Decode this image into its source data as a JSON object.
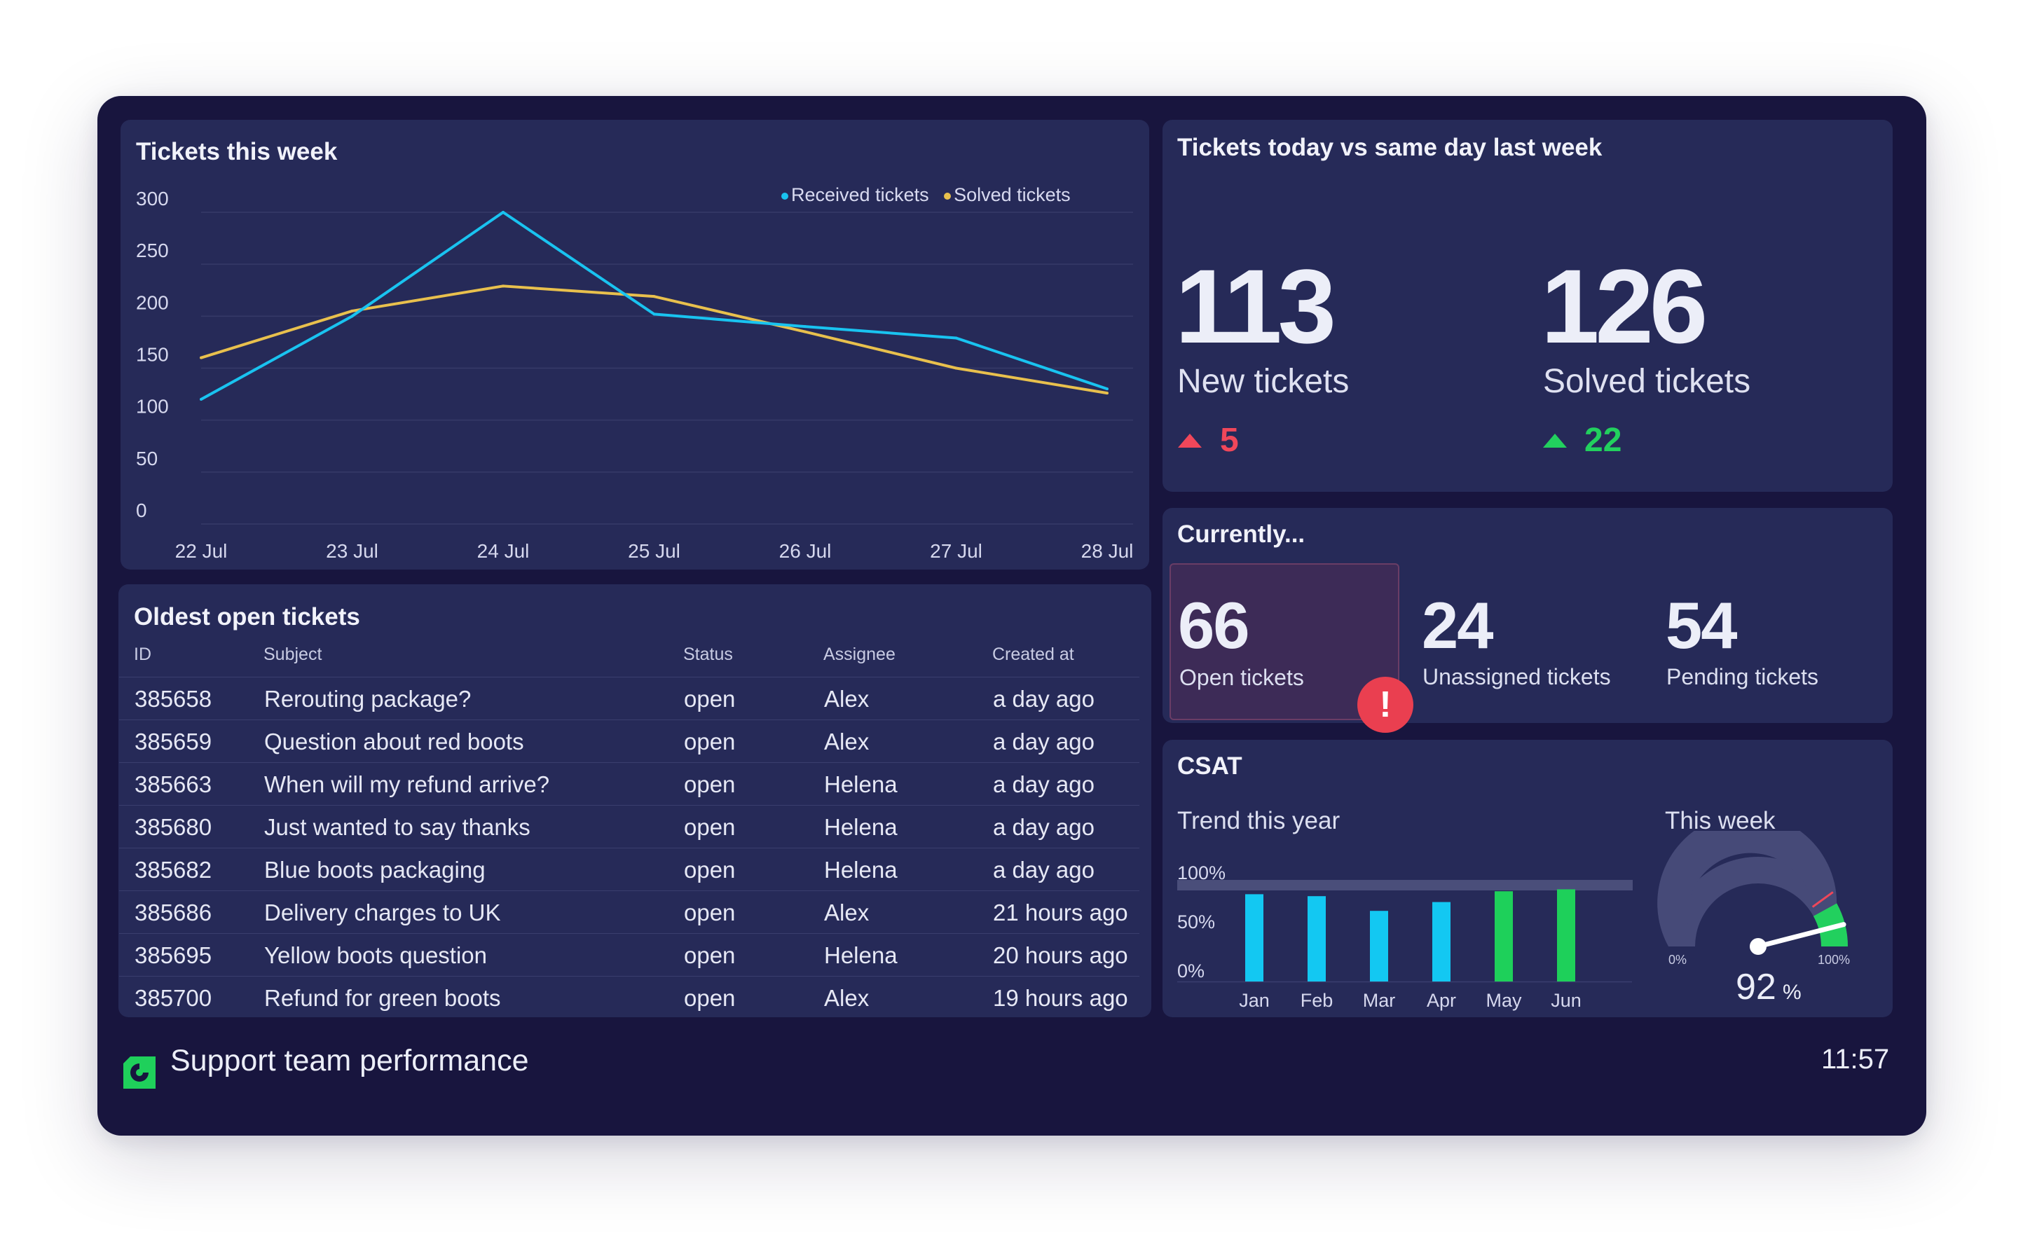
{
  "week_chart": {
    "title": "Tickets this week",
    "legend": [
      "Received tickets",
      "Solved tickets"
    ],
    "colors": {
      "received": "#19c3f0",
      "solved": "#e8c04d"
    }
  },
  "chart_data": [
    {
      "type": "line",
      "title": "Tickets this week",
      "categories": [
        "22 Jul",
        "23 Jul",
        "24 Jul",
        "25 Jul",
        "26 Jul",
        "27 Jul",
        "28 Jul"
      ],
      "y_ticks": [
        "300",
        "250",
        "200",
        "150",
        "100",
        "50",
        "0"
      ],
      "ylim": [
        0,
        300
      ],
      "series": [
        {
          "name": "Received tickets",
          "values": [
            120,
            200,
            300,
            202,
            190,
            179,
            130
          ]
        },
        {
          "name": "Solved tickets",
          "values": [
            160,
            205,
            229,
            219,
            185,
            150,
            126
          ]
        }
      ],
      "grid": true,
      "legend_position": "top-right"
    },
    {
      "type": "bar",
      "title": "Trend this year",
      "categories": [
        "Jan",
        "Feb",
        "Mar",
        "Apr",
        "May",
        "Jun"
      ],
      "y_ticks": [
        "100%",
        "50%",
        "0%"
      ],
      "ylim": [
        0,
        100
      ],
      "values": [
        89,
        87,
        72,
        81,
        92,
        94
      ],
      "colors": [
        "#13c8f2",
        "#13c8f2",
        "#13c8f2",
        "#13c8f2",
        "#1ed05a",
        "#1ed05a"
      ]
    }
  ],
  "today": {
    "title": "Tickets today vs same day last week",
    "new": {
      "value": "113",
      "label": "New tickets",
      "delta": "5",
      "delta_color": "#f0475a"
    },
    "solved": {
      "value": "126",
      "label": "Solved tickets",
      "delta": "22",
      "delta_color": "#22d05e"
    }
  },
  "currently": {
    "title": "Currently...",
    "open": {
      "value": "66",
      "label": "Open tickets"
    },
    "unassigned": {
      "value": "24",
      "label": "Unassigned tickets"
    },
    "pending": {
      "value": "54",
      "label": "Pending tickets"
    },
    "alert": "!"
  },
  "oldest": {
    "title": "Oldest open tickets",
    "columns": [
      "ID",
      "Subject",
      "Status",
      "Assignee",
      "Created at"
    ],
    "rows": [
      [
        "385658",
        "Rerouting package?",
        "open",
        "Alex",
        "a day ago"
      ],
      [
        "385659",
        "Question about red boots",
        "open",
        "Alex",
        "a day ago"
      ],
      [
        "385663",
        "When will my refund arrive?",
        "open",
        "Helena",
        "a day ago"
      ],
      [
        "385680",
        "Just wanted to say thanks",
        "open",
        "Helena",
        "a day ago"
      ],
      [
        "385682",
        "Blue boots packaging",
        "open",
        "Helena",
        "a day ago"
      ],
      [
        "385686",
        "Delivery charges to UK",
        "open",
        "Alex",
        "21 hours ago"
      ],
      [
        "385695",
        "Yellow boots question",
        "open",
        "Helena",
        "20 hours ago"
      ],
      [
        "385700",
        "Refund for green boots",
        "open",
        "Alex",
        "19 hours ago"
      ]
    ]
  },
  "csat": {
    "title": "CSAT",
    "trend_label": "Trend this year",
    "week_label": "This week",
    "gauge": {
      "value": 92,
      "value_text": "92",
      "unit": "%",
      "min_label": "0%",
      "max_label": "100%",
      "target": 80
    }
  },
  "footer": {
    "title": "Support team performance",
    "clock": "11:57",
    "logo_icon": "geckoboard-logo-icon"
  }
}
